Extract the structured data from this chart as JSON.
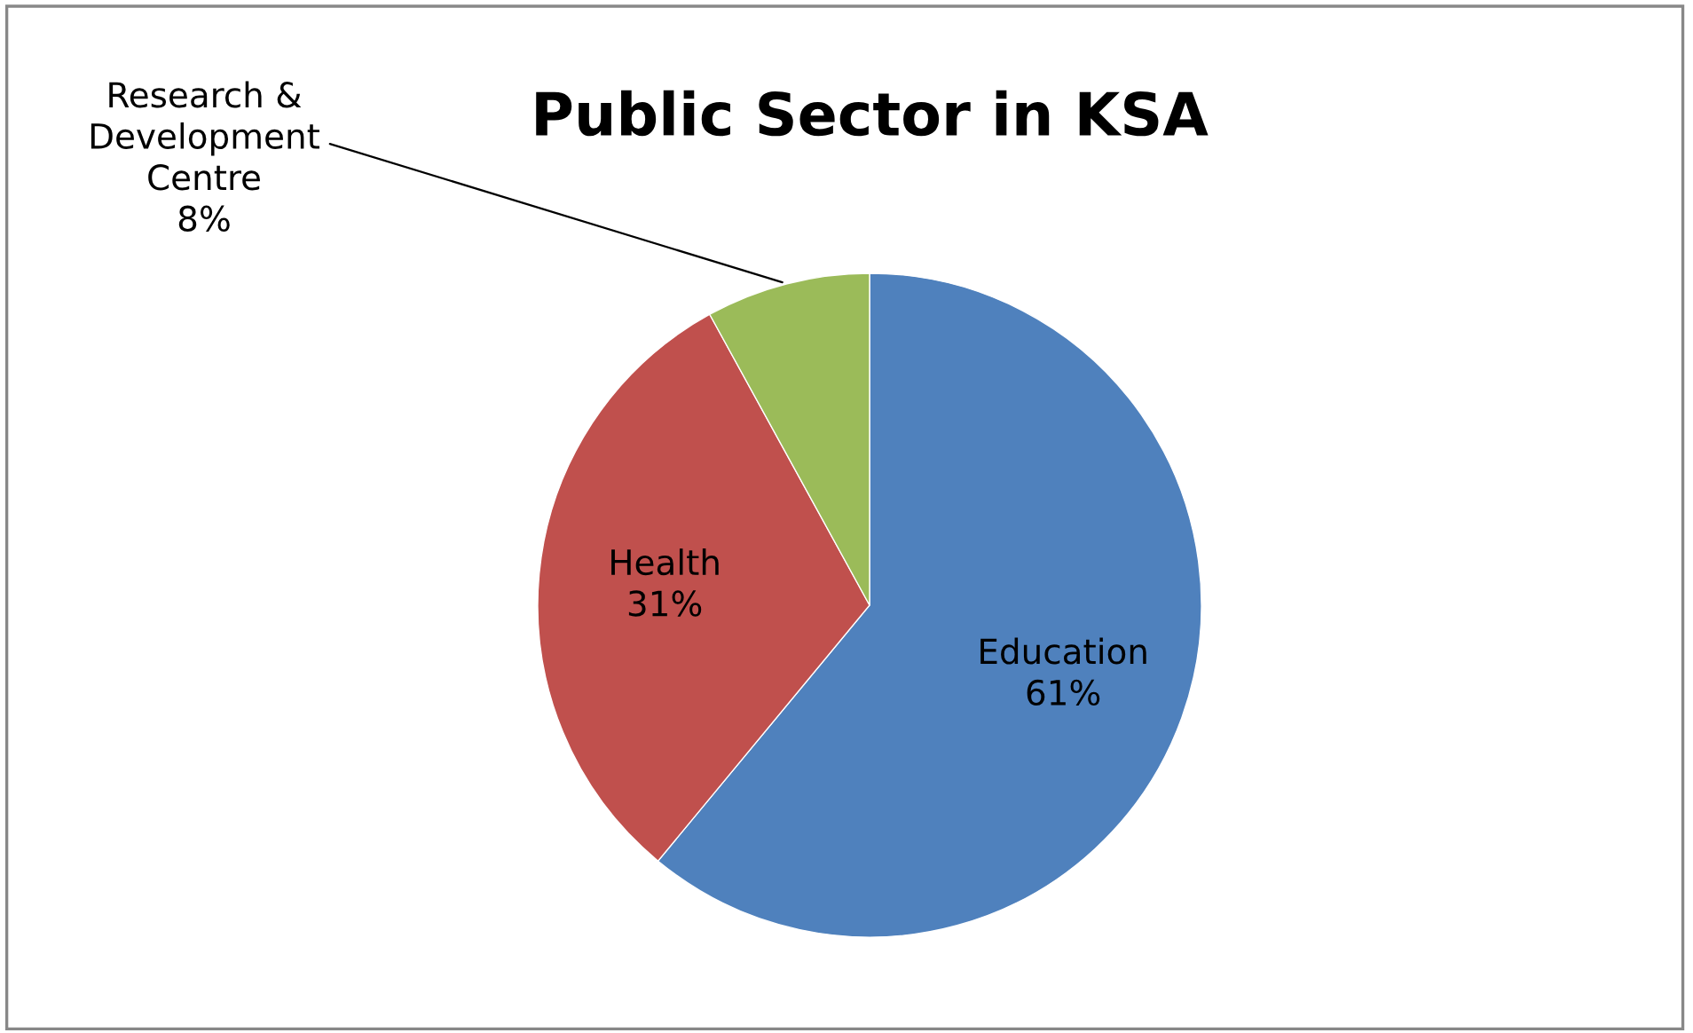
{
  "chart_data": {
    "type": "pie",
    "title": "Public Sector in KSA",
    "categories": [
      "Education",
      "Health",
      "Research &\nDevelopment\nCentre"
    ],
    "values": [
      61,
      31,
      8
    ],
    "colors": [
      "#4f81bd",
      "#c0504d",
      "#9bbb59"
    ],
    "value_labels": [
      "61%",
      "31%",
      "8%"
    ]
  }
}
